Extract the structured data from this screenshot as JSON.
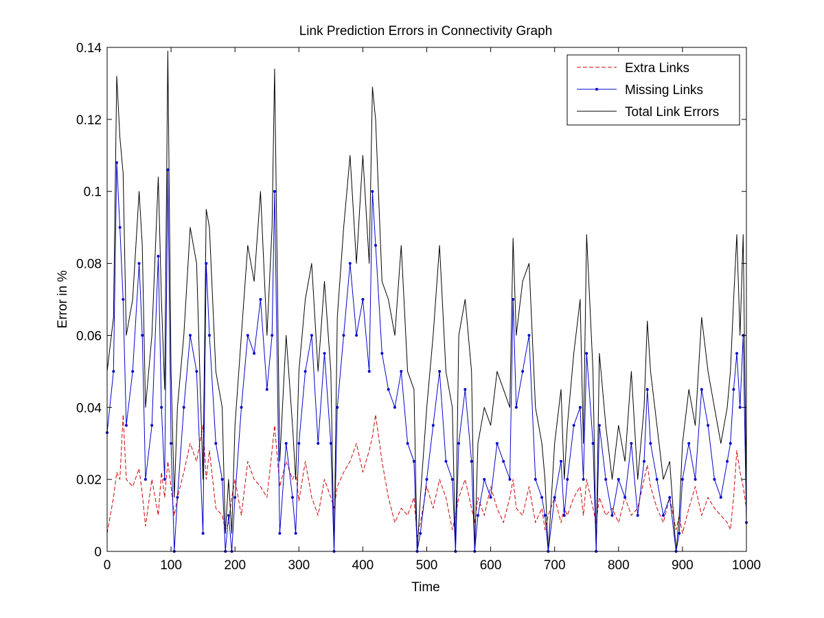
{
  "chart_data": {
    "type": "line",
    "title": "Link Prediction Errors in Connectivity Graph",
    "xlabel": "Time",
    "ylabel": "Error in %",
    "xlim": [
      0,
      1000
    ],
    "ylim": [
      0,
      0.14
    ],
    "xticks": [
      0,
      100,
      200,
      300,
      400,
      500,
      600,
      700,
      800,
      900,
      1000
    ],
    "xtick_labels": [
      "0",
      "100",
      "200",
      "300",
      "400",
      "500",
      "600",
      "700",
      "800",
      "900",
      "1000"
    ],
    "yticks": [
      0,
      0.02,
      0.04,
      0.06,
      0.08,
      0.1,
      0.12,
      0.14
    ],
    "ytick_labels": [
      "0",
      "0.02",
      "0.04",
      "0.06",
      "0.08",
      "0.1",
      "0.12",
      "0.14"
    ],
    "grid": false,
    "legend_position": "top-right",
    "x": [
      0,
      10,
      15,
      20,
      25,
      30,
      40,
      50,
      55,
      60,
      70,
      80,
      85,
      90,
      95,
      100,
      105,
      110,
      120,
      130,
      140,
      150,
      155,
      160,
      170,
      180,
      185,
      190,
      195,
      200,
      210,
      220,
      230,
      240,
      250,
      258,
      262,
      270,
      280,
      290,
      295,
      300,
      310,
      320,
      330,
      340,
      350,
      355,
      360,
      370,
      380,
      390,
      400,
      410,
      415,
      420,
      430,
      440,
      450,
      460,
      470,
      480,
      485,
      490,
      500,
      510,
      520,
      530,
      540,
      545,
      550,
      560,
      570,
      575,
      580,
      590,
      600,
      610,
      620,
      630,
      635,
      640,
      650,
      660,
      670,
      680,
      685,
      690,
      700,
      710,
      715,
      720,
      730,
      740,
      745,
      750,
      760,
      765,
      770,
      780,
      790,
      800,
      810,
      820,
      830,
      840,
      845,
      850,
      860,
      870,
      880,
      890,
      895,
      900,
      910,
      920,
      930,
      940,
      950,
      960,
      970,
      975,
      980,
      985,
      990,
      995,
      1000
    ],
    "series": [
      {
        "name": "Extra Links",
        "color": "#cc0000",
        "style": "dashed",
        "values": [
          0.005,
          0.015,
          0.022,
          0.02,
          0.038,
          0.02,
          0.018,
          0.023,
          0.016,
          0.007,
          0.02,
          0.01,
          0.022,
          0.015,
          0.025,
          0.018,
          0.01,
          0.015,
          0.022,
          0.03,
          0.025,
          0.035,
          0.02,
          0.028,
          0.012,
          0.01,
          0.006,
          0.008,
          0.015,
          0.02,
          0.01,
          0.025,
          0.02,
          0.018,
          0.015,
          0.028,
          0.035,
          0.018,
          0.025,
          0.02,
          0.022,
          0.014,
          0.025,
          0.015,
          0.01,
          0.02,
          0.015,
          0.012,
          0.018,
          0.022,
          0.025,
          0.03,
          0.022,
          0.028,
          0.032,
          0.038,
          0.025,
          0.015,
          0.008,
          0.012,
          0.01,
          0.015,
          0.004,
          0.008,
          0.018,
          0.012,
          0.02,
          0.015,
          0.006,
          0.01,
          0.015,
          0.02,
          0.012,
          0.008,
          0.015,
          0.01,
          0.018,
          0.012,
          0.008,
          0.015,
          0.02,
          0.012,
          0.01,
          0.018,
          0.008,
          0.012,
          0.006,
          0.01,
          0.015,
          0.008,
          0.012,
          0.01,
          0.015,
          0.018,
          0.01,
          0.02,
          0.012,
          0.008,
          0.015,
          0.01,
          0.012,
          0.008,
          0.015,
          0.01,
          0.012,
          0.02,
          0.024,
          0.018,
          0.012,
          0.008,
          0.015,
          0.006,
          0.01,
          0.005,
          0.012,
          0.018,
          0.01,
          0.015,
          0.012,
          0.01,
          0.008,
          0.006,
          0.015,
          0.028,
          0.022,
          0.018,
          0.012
        ]
      },
      {
        "name": "Missing Links",
        "color": "#0000cc",
        "style": "solid",
        "marker": "dot",
        "values": [
          0.033,
          0.05,
          0.108,
          0.09,
          0.07,
          0.035,
          0.05,
          0.08,
          0.06,
          0.02,
          0.035,
          0.082,
          0.04,
          0.02,
          0.106,
          0.03,
          0.0,
          0.015,
          0.04,
          0.06,
          0.05,
          0.005,
          0.08,
          0.06,
          0.03,
          0.02,
          0.0,
          0.01,
          0.0,
          0.015,
          0.04,
          0.06,
          0.055,
          0.07,
          0.045,
          0.06,
          0.1,
          0.005,
          0.03,
          0.015,
          0.005,
          0.03,
          0.05,
          0.06,
          0.03,
          0.055,
          0.03,
          0.0,
          0.04,
          0.06,
          0.08,
          0.06,
          0.07,
          0.05,
          0.1,
          0.085,
          0.055,
          0.045,
          0.04,
          0.05,
          0.03,
          0.025,
          0.0,
          0.005,
          0.02,
          0.035,
          0.05,
          0.025,
          0.02,
          0.0,
          0.03,
          0.045,
          0.025,
          0.0,
          0.01,
          0.02,
          0.015,
          0.03,
          0.025,
          0.02,
          0.07,
          0.04,
          0.05,
          0.06,
          0.02,
          0.015,
          0.01,
          0.0,
          0.015,
          0.025,
          0.01,
          0.02,
          0.035,
          0.04,
          0.02,
          0.055,
          0.03,
          0.0,
          0.035,
          0.02,
          0.01,
          0.02,
          0.015,
          0.03,
          0.01,
          0.025,
          0.045,
          0.03,
          0.02,
          0.01,
          0.015,
          0.0,
          0.005,
          0.02,
          0.03,
          0.02,
          0.045,
          0.035,
          0.02,
          0.015,
          0.025,
          0.03,
          0.045,
          0.055,
          0.04,
          0.06,
          0.008
        ]
      },
      {
        "name": "Total Link Errors",
        "color": "#000000",
        "style": "solid",
        "values": [
          0.05,
          0.065,
          0.132,
          0.115,
          0.105,
          0.06,
          0.07,
          0.1,
          0.085,
          0.04,
          0.06,
          0.104,
          0.07,
          0.045,
          0.139,
          0.05,
          0.015,
          0.04,
          0.06,
          0.09,
          0.08,
          0.02,
          0.095,
          0.09,
          0.05,
          0.04,
          0.005,
          0.02,
          0.005,
          0.035,
          0.06,
          0.085,
          0.075,
          0.1,
          0.06,
          0.09,
          0.134,
          0.025,
          0.06,
          0.035,
          0.02,
          0.05,
          0.07,
          0.08,
          0.05,
          0.075,
          0.05,
          0.0,
          0.065,
          0.09,
          0.11,
          0.08,
          0.11,
          0.08,
          0.129,
          0.12,
          0.075,
          0.07,
          0.06,
          0.085,
          0.05,
          0.045,
          0.0,
          0.015,
          0.04,
          0.06,
          0.085,
          0.05,
          0.04,
          0.0,
          0.06,
          0.07,
          0.05,
          0.0,
          0.03,
          0.04,
          0.035,
          0.05,
          0.045,
          0.04,
          0.087,
          0.06,
          0.075,
          0.08,
          0.04,
          0.03,
          0.02,
          0.0,
          0.03,
          0.045,
          0.02,
          0.035,
          0.055,
          0.07,
          0.03,
          0.088,
          0.05,
          0.0,
          0.055,
          0.035,
          0.02,
          0.035,
          0.025,
          0.05,
          0.02,
          0.04,
          0.064,
          0.05,
          0.035,
          0.02,
          0.025,
          0.0,
          0.01,
          0.03,
          0.045,
          0.035,
          0.065,
          0.05,
          0.04,
          0.03,
          0.04,
          0.05,
          0.07,
          0.088,
          0.06,
          0.088,
          0.015
        ]
      }
    ]
  }
}
